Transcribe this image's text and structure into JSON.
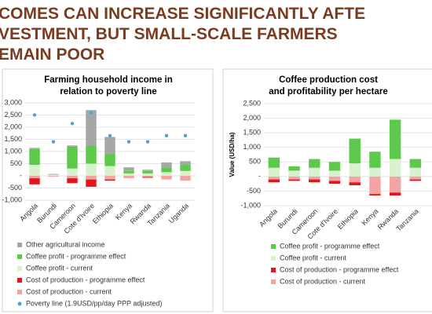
{
  "header": {
    "title_lines": [
      "COMES CAN INCREASE SIGNIFICANTLY AFTE",
      "VESTMENT, BUT SMALL-SCALE FARMERS",
      "EMAIN POOR"
    ]
  },
  "chart_data": [
    {
      "type": "bar",
      "title": "Farming household income in relation to poverty line",
      "categories": [
        "Angola",
        "Burundi",
        "Cameroon",
        "Cote d'Ivoire",
        "Ethiopia",
        "Kenya",
        "Rwanda",
        "Tanzania",
        "Uganda"
      ],
      "ylim": [
        -1000,
        3000
      ],
      "yticks": [
        {
          "value": -1000,
          "label": "-1,000"
        },
        -500,
        {
          "value": 0,
          "label": "-"
        },
        500,
        {
          "value": 1000,
          "label": "1,000"
        },
        {
          "value": 1500,
          "label": "1,500"
        },
        {
          "value": 2000,
          "label": "2,000"
        },
        {
          "value": 2500,
          "label": "2,500"
        },
        {
          "value": 3000,
          "label": "3,000"
        }
      ],
      "grid": true,
      "series": [
        {
          "name": "Cost of production - current",
          "color": "#f4a3a3",
          "values": [
            -100,
            -30,
            -100,
            -150,
            -150,
            -100,
            -50,
            -150,
            -200
          ]
        },
        {
          "name": "Cost of production - programme effect",
          "color": "#e8141b",
          "values": [
            -250,
            0,
            -200,
            -300,
            -50,
            0,
            -30,
            0,
            0
          ]
        },
        {
          "name": "Coffee profit - current",
          "color": "#d8f2cf",
          "values": [
            450,
            50,
            300,
            500,
            400,
            100,
            100,
            150,
            200
          ]
        },
        {
          "name": "Coffee profit - programme effect",
          "color": "#5cc94a",
          "values": [
            650,
            0,
            900,
            750,
            500,
            100,
            100,
            200,
            250
          ]
        },
        {
          "name": "Other agricultural income",
          "color": "#a6a6a6",
          "values": [
            50,
            30,
            50,
            1450,
            700,
            150,
            50,
            200,
            150
          ]
        },
        {
          "name": "Poverty line (1.9USD/pp/day PPP adjusted)",
          "color": "#4aa3d8",
          "marker": "dot",
          "values": [
            2500,
            1400,
            2150,
            2600,
            1650,
            1400,
            1400,
            1650,
            1650
          ]
        }
      ]
    },
    {
      "type": "bar",
      "title": "Coffee production cost and profitability per hectare",
      "ylabel": "Value (USD/ha)",
      "categories": [
        "Angola",
        "Burundi",
        "Cameroon",
        "Cote d'Ivoire",
        "Ethiopia",
        "Kenya",
        "Rwanda",
        "Tanzania"
      ],
      "ylim": [
        -1000,
        2500
      ],
      "yticks": [
        {
          "value": -1000,
          "label": "-1,000"
        },
        -500,
        {
          "value": 0,
          "label": "-"
        },
        500,
        {
          "value": 1000,
          "label": "1,000"
        },
        {
          "value": 1500,
          "label": "1,500"
        },
        {
          "value": 2000,
          "label": "2,000"
        },
        {
          "value": 2500,
          "label": "2,500"
        }
      ],
      "grid": true,
      "series": [
        {
          "name": "Cost of production - current",
          "color": "#f4a3a3",
          "values": [
            -100,
            -100,
            -100,
            -150,
            -200,
            -600,
            -550,
            -100
          ]
        },
        {
          "name": "Cost of production - programme effect",
          "color": "#e8141b",
          "values": [
            -100,
            -50,
            -100,
            -100,
            -100,
            -50,
            -100,
            -50
          ]
        },
        {
          "name": "Coffee profit - current",
          "color": "#d8f2cf",
          "values": [
            300,
            200,
            300,
            200,
            450,
            300,
            600,
            300
          ]
        },
        {
          "name": "Coffee profit - programme effect",
          "color": "#5cc94a",
          "values": [
            350,
            150,
            300,
            300,
            850,
            550,
            1350,
            300
          ]
        }
      ]
    }
  ]
}
